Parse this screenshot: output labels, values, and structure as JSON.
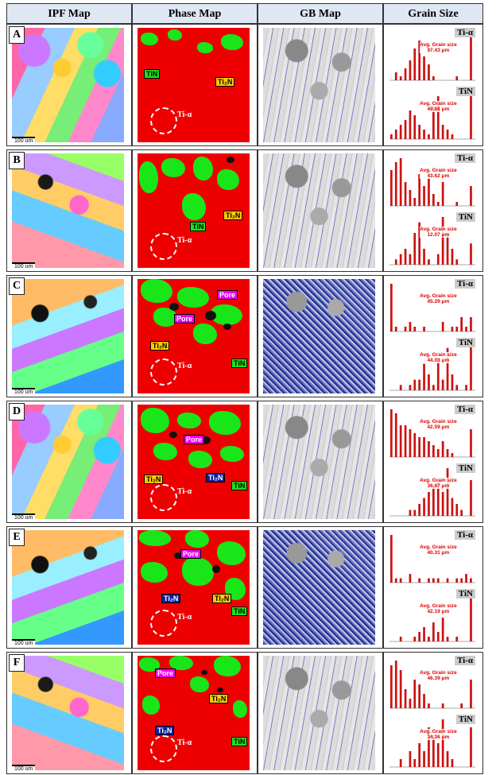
{
  "headers": {
    "ipf": "IPF Map",
    "phase": "Phase Map",
    "gb": "GB Map",
    "grain": "Grain Size"
  },
  "scale_label": "100 um",
  "labels": {
    "tin": "TiN",
    "ti2n": "Ti₂N",
    "pore": "Pore",
    "ti_alpha": "Ti-α",
    "avg_grain_size": "Avg. Grain size",
    "unit": "μm"
  },
  "rows": [
    {
      "letter": "A",
      "alpha_avg": "97.43",
      "tin_avg": "49.88"
    },
    {
      "letter": "B",
      "alpha_avg": "43.62",
      "tin_avg": "12.07"
    },
    {
      "letter": "C",
      "alpha_avg": "45.29",
      "tin_avg": "44.03"
    },
    {
      "letter": "D",
      "alpha_avg": "42.59",
      "tin_avg": "36.87"
    },
    {
      "letter": "E",
      "alpha_avg": "40.31",
      "tin_avg": "42.19"
    },
    {
      "letter": "F",
      "alpha_avg": "46.39",
      "tin_avg": "34.36"
    }
  ],
  "histograms": {
    "A": {
      "alpha": [
        0,
        2,
        1,
        3,
        5,
        8,
        10,
        6,
        4,
        1,
        0,
        0,
        0,
        0,
        1,
        0,
        0,
        12
      ],
      "tin": [
        1,
        2,
        3,
        4,
        6,
        5,
        3,
        2,
        1,
        7,
        9,
        3,
        2,
        1,
        0,
        0,
        0,
        10
      ]
    },
    "B": {
      "alpha": [
        9,
        11,
        12,
        6,
        4,
        2,
        8,
        5,
        7,
        3,
        1,
        6,
        0,
        0,
        1,
        0,
        0,
        5
      ],
      "tin": [
        0,
        1,
        2,
        3,
        2,
        6,
        8,
        3,
        1,
        0,
        2,
        9,
        6,
        3,
        1,
        0,
        0,
        4
      ]
    },
    "C": {
      "alpha": [
        10,
        1,
        0,
        1,
        2,
        1,
        0,
        1,
        0,
        0,
        0,
        2,
        0,
        1,
        1,
        3,
        1,
        3
      ],
      "tin": [
        0,
        0,
        1,
        0,
        1,
        2,
        2,
        5,
        3,
        1,
        6,
        2,
        8,
        3,
        1,
        0,
        1,
        9
      ]
    },
    "D": {
      "alpha": [
        12,
        11,
        8,
        8,
        7,
        6,
        5,
        5,
        4,
        3,
        2,
        4,
        2,
        1,
        0,
        0,
        0,
        7
      ],
      "tin": [
        0,
        0,
        0,
        0,
        1,
        1,
        2,
        3,
        4,
        5,
        6,
        4,
        8,
        3,
        2,
        1,
        0,
        6
      ]
    },
    "E": {
      "alpha": [
        11,
        1,
        1,
        0,
        2,
        0,
        1,
        0,
        1,
        1,
        1,
        0,
        1,
        0,
        1,
        1,
        2,
        1
      ],
      "tin": [
        0,
        0,
        1,
        0,
        0,
        1,
        2,
        3,
        1,
        4,
        2,
        5,
        1,
        0,
        1,
        0,
        0,
        10
      ]
    },
    "F": {
      "alpha": [
        9,
        10,
        8,
        4,
        2,
        6,
        5,
        3,
        1,
        0,
        0,
        1,
        0,
        0,
        0,
        1,
        0,
        6
      ],
      "tin": [
        0,
        0,
        1,
        0,
        2,
        1,
        3,
        2,
        5,
        4,
        3,
        6,
        2,
        1,
        0,
        0,
        0,
        5
      ]
    }
  },
  "colors": {
    "bar": "#cc1111"
  }
}
